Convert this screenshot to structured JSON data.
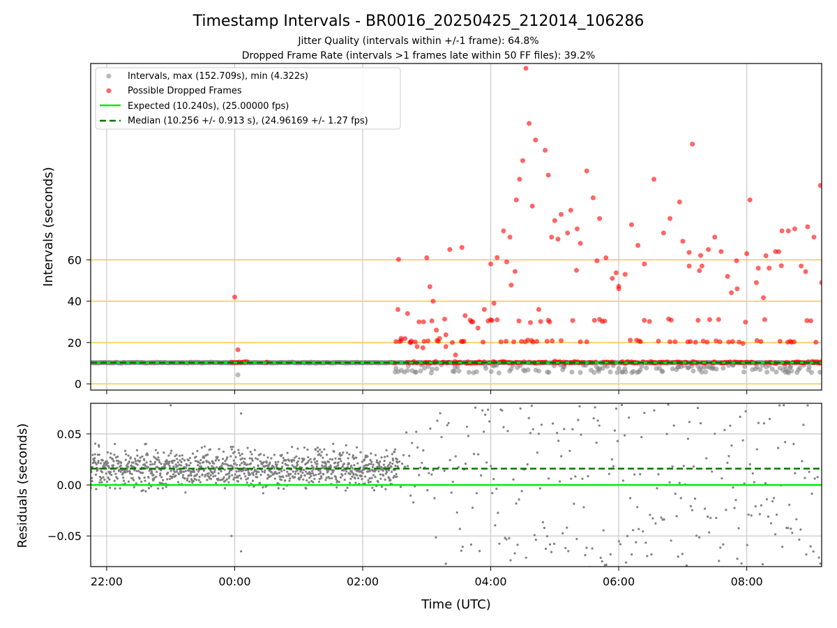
{
  "chart_data": [
    {
      "type": "scatter",
      "title": "Timestamp Intervals - BR0016_20250425_212014_106286",
      "subtitle_lines": [
        "Jitter Quality (intervals within +/-1 frame): 64.8%",
        "Dropped Frame Rate (intervals >1 frames late within 50 FF files): 39.2%"
      ],
      "ylabel": "Intervals (seconds)",
      "ylim": [
        -3,
        155
      ],
      "yticks": [
        0,
        20,
        40,
        60
      ],
      "ytick_labels": [
        "0",
        "20",
        "40",
        "60"
      ],
      "reference_lines_y": [
        0,
        20,
        40,
        60
      ],
      "xlim_hours": [
        -2.25,
        9.17
      ],
      "grid": true,
      "legend_position": "upper-left",
      "series": [
        {
          "name": "Intervals, max (152.709s), min (4.322s)",
          "color": "#808080",
          "marker": "circle",
          "summary": {
            "max": 152.709,
            "min": 4.322,
            "typical": 10.256
          }
        },
        {
          "name": "Possible Dropped Frames",
          "color": "#ff0000",
          "marker": "circle"
        }
      ],
      "lines": [
        {
          "name": "Expected (10.240s), (25.00000 fps)",
          "y": 10.24,
          "color": "#00ee00",
          "style": "solid"
        },
        {
          "name": "Median (10.256 +/- 0.913 s), (24.96169 +/- 1.27 fps)",
          "y": 10.256,
          "color": "#007700",
          "style": "dashed"
        }
      ],
      "dropped_frames_sample": [
        [
          0.0,
          42
        ],
        [
          0.05,
          16.5
        ],
        [
          0.5,
          10.5
        ],
        [
          2.55,
          36
        ],
        [
          2.6,
          22
        ],
        [
          2.7,
          34
        ],
        [
          2.75,
          20
        ],
        [
          2.85,
          18
        ],
        [
          2.95,
          30
        ],
        [
          3.0,
          61
        ],
        [
          3.05,
          47
        ],
        [
          3.1,
          40
        ],
        [
          3.15,
          26
        ],
        [
          3.2,
          22
        ],
        [
          3.3,
          18
        ],
        [
          3.4,
          20
        ],
        [
          3.45,
          14
        ],
        [
          3.55,
          66
        ],
        [
          3.6,
          33
        ],
        [
          3.7,
          30
        ],
        [
          3.8,
          27
        ],
        [
          3.9,
          36
        ],
        [
          4.0,
          58
        ],
        [
          4.05,
          39
        ],
        [
          4.1,
          31
        ],
        [
          4.2,
          74
        ],
        [
          4.25,
          59
        ],
        [
          4.3,
          71
        ],
        [
          4.4,
          89
        ],
        [
          4.45,
          99
        ],
        [
          4.5,
          108
        ],
        [
          4.55,
          152.7
        ],
        [
          4.6,
          126
        ],
        [
          4.65,
          86
        ],
        [
          4.7,
          118
        ],
        [
          4.75,
          36
        ],
        [
          4.85,
          113
        ],
        [
          4.9,
          101
        ],
        [
          4.95,
          71
        ],
        [
          5.0,
          79
        ],
        [
          5.05,
          70
        ],
        [
          5.1,
          82
        ],
        [
          5.2,
          73
        ],
        [
          5.25,
          84
        ],
        [
          5.35,
          75
        ],
        [
          5.4,
          68
        ],
        [
          5.5,
          103
        ],
        [
          5.6,
          90
        ],
        [
          5.7,
          80
        ],
        [
          5.8,
          61
        ],
        [
          5.9,
          51
        ],
        [
          6.0,
          46
        ],
        [
          6.1,
          53
        ],
        [
          6.2,
          77
        ],
        [
          6.3,
          67
        ],
        [
          6.4,
          58
        ],
        [
          6.55,
          99
        ],
        [
          6.7,
          73
        ],
        [
          6.8,
          80
        ],
        [
          6.95,
          88
        ],
        [
          7.0,
          69
        ],
        [
          7.1,
          57
        ],
        [
          7.15,
          116
        ],
        [
          7.3,
          57
        ],
        [
          7.4,
          65
        ],
        [
          7.5,
          71
        ],
        [
          7.6,
          64
        ],
        [
          7.7,
          52
        ],
        [
          7.85,
          46
        ],
        [
          8.0,
          63
        ],
        [
          8.05,
          89
        ],
        [
          8.15,
          49
        ],
        [
          8.3,
          62
        ],
        [
          8.35,
          56
        ],
        [
          8.45,
          64
        ],
        [
          8.55,
          74
        ],
        [
          8.65,
          74
        ],
        [
          8.75,
          75
        ],
        [
          8.85,
          57
        ],
        [
          8.95,
          76
        ],
        [
          9.05,
          71
        ],
        [
          9.15,
          96
        ],
        [
          9.17,
          49
        ]
      ]
    },
    {
      "type": "scatter",
      "ylabel": "Residuals (seconds)",
      "xlabel": "Time (UTC)",
      "ylim": [
        -0.08,
        0.08
      ],
      "yticks": [
        -0.05,
        0.0,
        0.05
      ],
      "ytick_labels": [
        "−0.05",
        "0.00",
        "0.05"
      ],
      "xticks_hours": [
        -2,
        0,
        2,
        4,
        6,
        8
      ],
      "xtick_labels": [
        "22:00",
        "00:00",
        "02:00",
        "04:00",
        "06:00",
        "08:00"
      ],
      "xlim_hours": [
        -2.25,
        9.17
      ],
      "grid": true,
      "series": [
        {
          "color": "#808080",
          "marker": "dot",
          "summary": {
            "dense_band_start_hour": -2.7,
            "dense_band_end_hour": 2.55,
            "center": 0.016,
            "spread": 0.012
          }
        }
      ],
      "lines": [
        {
          "y": 0.0,
          "color": "#00ee00",
          "style": "solid"
        },
        {
          "y": 0.016,
          "color": "#007700",
          "style": "dashed"
        }
      ]
    }
  ]
}
